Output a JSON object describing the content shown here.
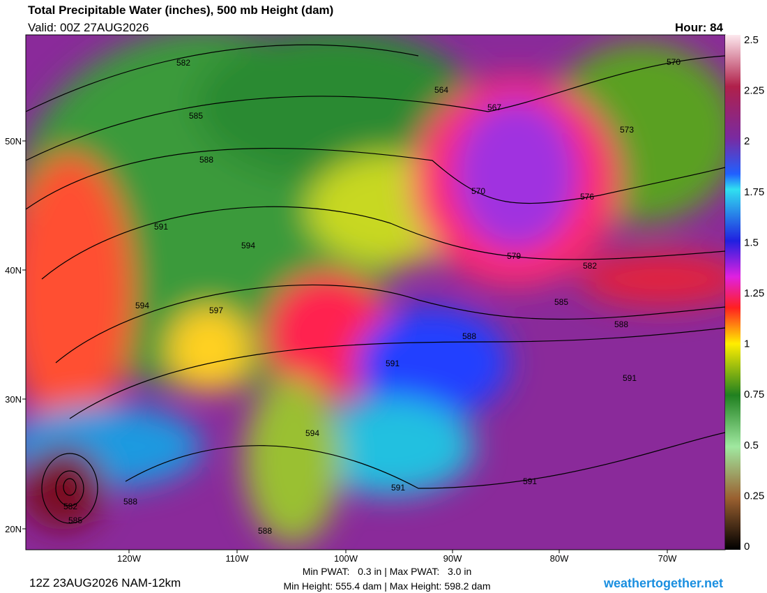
{
  "header": {
    "title": "Total Precipitable Water (inches), 500 mb Height (dam)",
    "valid": "Valid: 00Z 27AUG2026",
    "hour": "Hour: 84"
  },
  "map": {
    "lat_labels": [
      "50N",
      "40N",
      "30N",
      "20N"
    ],
    "lon_labels": [
      "120W",
      "110W",
      "100W",
      "90W",
      "80W",
      "70W"
    ],
    "contour_labels": [
      "582",
      "585",
      "588",
      "591",
      "594",
      "594",
      "597",
      "564",
      "567",
      "570",
      "573",
      "576",
      "570",
      "579",
      "582",
      "585",
      "588",
      "588",
      "591",
      "591",
      "594",
      "591",
      "591",
      "588",
      "582",
      "585",
      "588"
    ]
  },
  "colorbar": {
    "ticks": [
      "2.5",
      "2.25",
      "2",
      "1.75",
      "1.5",
      "1.25",
      "1",
      "0.75",
      "0.5",
      "0.25",
      "0"
    ]
  },
  "footer": {
    "run": "12Z 23AUG2026 NAM-12km",
    "stats": [
      "Min PWAT:   0.3 in | Max PWAT:   3.0 in",
      "Min Height: 555.4 dam | Max Height: 598.2 dam"
    ],
    "site": "weathertogether.net"
  }
}
